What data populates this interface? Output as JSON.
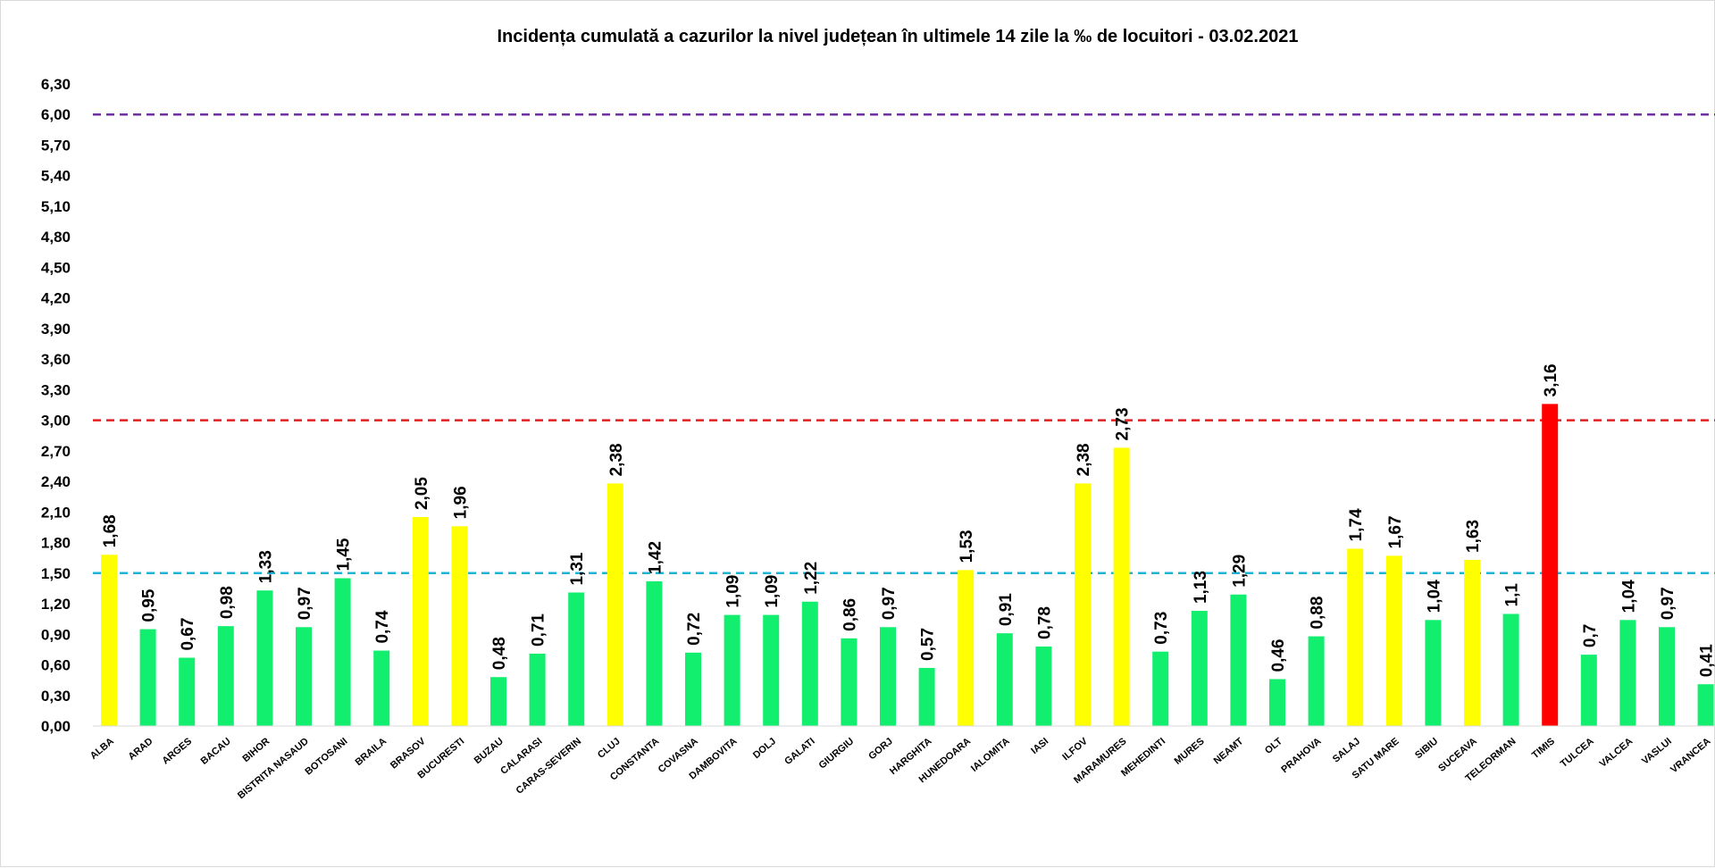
{
  "chart_data": {
    "type": "bar",
    "title": "Incidența cumulată a cazurilor la nivel județean în ultimele 14 zile la ‰ de locuitori - 03.02.2021",
    "xlabel": "",
    "ylabel": "",
    "ylim": [
      0,
      6.3
    ],
    "yticks": [
      "0,00",
      "0,30",
      "0,60",
      "0,90",
      "1,20",
      "1,50",
      "1,80",
      "2,10",
      "2,40",
      "2,70",
      "3,00",
      "3,30",
      "3,60",
      "3,90",
      "4,20",
      "4,50",
      "4,80",
      "5,10",
      "5,40",
      "5,70",
      "6,00",
      "6,30"
    ],
    "grid": false,
    "legend": "none",
    "categories": [
      "ALBA",
      "ARAD",
      "ARGES",
      "BACAU",
      "BIHOR",
      "BISTRITA NASAUD",
      "BOTOSANI",
      "BRAILA",
      "BRASOV",
      "BUCURESTI",
      "BUZAU",
      "CALARASI",
      "CARAS-SEVERIN",
      "CLUJ",
      "CONSTANTA",
      "COVASNA",
      "DAMBOVITA",
      "DOLJ",
      "GALATI",
      "GIURGIU",
      "GORJ",
      "HARGHITA",
      "HUNEDOARA",
      "IALOMITA",
      "IASI",
      "ILFOV",
      "MARAMURES",
      "MEHEDINTI",
      "MURES",
      "NEAMT",
      "OLT",
      "PRAHOVA",
      "SALAJ",
      "SATU MARE",
      "SIBIU",
      "SUCEAVA",
      "TELEORMAN",
      "TIMIS",
      "TULCEA",
      "VALCEA",
      "VASLUI",
      "VRANCEA"
    ],
    "values": [
      1.68,
      0.95,
      0.67,
      0.98,
      1.33,
      0.97,
      1.45,
      0.74,
      2.05,
      1.96,
      0.48,
      0.71,
      1.31,
      2.38,
      1.42,
      0.72,
      1.09,
      1.09,
      1.22,
      0.86,
      0.97,
      0.57,
      1.53,
      0.91,
      0.78,
      2.38,
      2.73,
      0.73,
      1.13,
      1.29,
      0.46,
      0.88,
      1.74,
      1.67,
      1.04,
      1.63,
      1.1,
      3.16,
      0.7,
      1.04,
      0.97,
      0.41
    ],
    "data_labels": [
      "1,68",
      "0,95",
      "0,67",
      "0,98",
      "1,33",
      "0,97",
      "1,45",
      "0,74",
      "2,05",
      "1,96",
      "0,48",
      "0,71",
      "1,31",
      "2,38",
      "1,42",
      "0,72",
      "1,09",
      "1,09",
      "1,22",
      "0,86",
      "0,97",
      "0,57",
      "1,53",
      "0,91",
      "0,78",
      "2,38",
      "2,73",
      "0,73",
      "1,13",
      "1,29",
      "0,46",
      "0,88",
      "1,74",
      "1,67",
      "1,04",
      "1,63",
      "1,1",
      "3,16",
      "0,7",
      "1,04",
      "0,97",
      "0,41"
    ],
    "thresholds": [
      {
        "value": 1.5,
        "color": "#1fb4d6",
        "style": "dashed"
      },
      {
        "value": 3.0,
        "color": "#e02020",
        "style": "dashed"
      },
      {
        "value": 6.0,
        "color": "#7030a0",
        "style": "dashed"
      }
    ],
    "colors": {
      "low": "#12ef6e",
      "medium": "#ffff00",
      "high": "#ff0000"
    }
  }
}
